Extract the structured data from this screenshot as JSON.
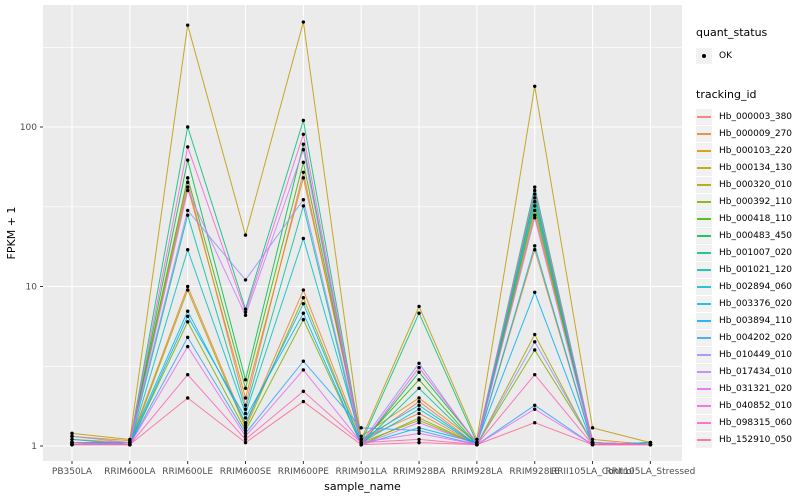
{
  "figure": {
    "xlabel": "sample_name",
    "ylabel": "FPKM + 1"
  },
  "legend": {
    "quant_status": {
      "title": "quant_status",
      "items": [
        {
          "label": "OK"
        }
      ]
    },
    "tracking_id": {
      "title": "tracking_id"
    }
  },
  "chart_data": {
    "type": "line",
    "x_type": "categorical",
    "title": "",
    "xlabel": "sample_name",
    "ylabel": "FPKM + 1",
    "y_scale": "log10",
    "y_ticks": [
      1,
      10,
      100
    ],
    "y_minor_ticks": [
      3.16,
      31.6,
      316
    ],
    "ylim": [
      0.95,
      520
    ],
    "grid": true,
    "legend_position": "right",
    "panel_bg": "#EBEBEB",
    "grid_color": "#FFFFFF",
    "point_color": "#000000",
    "quant_status_label": "OK",
    "categories": [
      "PB350LA",
      "RRIM600LA",
      "RRIM600LE",
      "RRIM600SE",
      "RRIM600PE",
      "RRIM901LA",
      "RRIM928BA",
      "RRIM928LA",
      "RRIM928LE",
      "RRII105LA_Control",
      "RRII105LA_Stressed"
    ],
    "series": [
      {
        "name": "Hb_000003_380",
        "color": "#F8766D",
        "values": [
          1.05,
          1.02,
          45,
          1.8,
          52,
          1.05,
          1.9,
          1.02,
          30,
          1.05,
          1.02
        ]
      },
      {
        "name": "Hb_000009_270",
        "color": "#EA8331",
        "values": [
          1.1,
          1.05,
          10,
          1.35,
          9.5,
          1.1,
          1.6,
          1.02,
          17,
          1.02,
          1.05
        ]
      },
      {
        "name": "Hb_000103_220",
        "color": "#D89000",
        "values": [
          1.15,
          1.08,
          42,
          2.0,
          48,
          1.15,
          2.0,
          1.05,
          28,
          1.1,
          1.02
        ]
      },
      {
        "name": "Hb_000134_130",
        "color": "#C09B00",
        "values": [
          1.2,
          1.1,
          435,
          21,
          455,
          1.1,
          7.5,
          1.1,
          180,
          1.3,
          1.05
        ]
      },
      {
        "name": "Hb_000320_010",
        "color": "#A3A500",
        "values": [
          1.02,
          1.02,
          9.5,
          1.3,
          8.5,
          1.05,
          1.45,
          1.02,
          5.0,
          1.02,
          1.02
        ]
      },
      {
        "name": "Hb_000392_110",
        "color": "#7CAE00",
        "values": [
          1.05,
          1.02,
          6.0,
          1.25,
          6.2,
          1.02,
          1.5,
          1.02,
          4.0,
          1.05,
          1.02
        ]
      },
      {
        "name": "Hb_000418_110",
        "color": "#39B600",
        "values": [
          1.02,
          1.05,
          48,
          2.3,
          60,
          1.05,
          2.6,
          1.02,
          32,
          1.02,
          1.05
        ]
      },
      {
        "name": "Hb_000483_450",
        "color": "#00BB4E",
        "values": [
          1.05,
          1.02,
          62,
          2.6,
          78,
          1.02,
          2.9,
          1.05,
          38,
          1.05,
          1.02
        ]
      },
      {
        "name": "Hb_001007_020",
        "color": "#00BF7D",
        "values": [
          1.05,
          1.05,
          100,
          7.2,
          110,
          1.05,
          6.8,
          1.05,
          42,
          1.05,
          1.02
        ]
      },
      {
        "name": "Hb_001021_120",
        "color": "#00C1A3",
        "values": [
          1.02,
          1.02,
          28,
          1.7,
          32,
          1.02,
          2.3,
          1.02,
          36,
          1.02,
          1.05
        ]
      },
      {
        "name": "Hb_002894_060",
        "color": "#00BFC4",
        "values": [
          1.1,
          1.02,
          17,
          1.6,
          20,
          1.1,
          1.8,
          1.02,
          34,
          1.05,
          1.02
        ]
      },
      {
        "name": "Hb_003376_020",
        "color": "#00BAE0",
        "values": [
          1.05,
          1.05,
          7.0,
          1.4,
          7.8,
          1.05,
          1.7,
          1.02,
          18,
          1.02,
          1.02
        ]
      },
      {
        "name": "Hb_003894_110",
        "color": "#00B0F6",
        "values": [
          1.02,
          1.02,
          6.5,
          1.5,
          6.8,
          1.02,
          1.3,
          1.05,
          9.2,
          1.02,
          1.02
        ]
      },
      {
        "name": "Hb_004202_020",
        "color": "#35A2FF",
        "values": [
          1.05,
          1.02,
          4.8,
          1.2,
          3.4,
          1.3,
          1.25,
          1.02,
          1.8,
          1.02,
          1.05
        ]
      },
      {
        "name": "Hb_010449_010",
        "color": "#9590FF",
        "values": [
          1.15,
          1.05,
          30,
          11,
          35,
          1.05,
          3.3,
          1.02,
          4.5,
          1.05,
          1.02
        ]
      },
      {
        "name": "Hb_017434_010",
        "color": "#C77CFF",
        "values": [
          1.02,
          1.02,
          40,
          6.6,
          72,
          1.02,
          1.4,
          1.02,
          27,
          1.02,
          1.02
        ]
      },
      {
        "name": "Hb_031321_020",
        "color": "#E76BF3",
        "values": [
          1.05,
          1.02,
          4.2,
          1.15,
          3.0,
          1.05,
          1.2,
          1.02,
          1.7,
          1.02,
          1.02
        ]
      },
      {
        "name": "Hb_040852_010",
        "color": "#FA62DB",
        "values": [
          1.02,
          1.05,
          75,
          6.9,
          90,
          1.02,
          3.1,
          1.05,
          40,
          1.05,
          1.02
        ]
      },
      {
        "name": "Hb_098315_060",
        "color": "#FF62BC",
        "values": [
          1.05,
          1.02,
          2.8,
          1.1,
          2.2,
          1.05,
          1.1,
          1.02,
          2.8,
          1.02,
          1.02
        ]
      },
      {
        "name": "Hb_152910_050",
        "color": "#FF6A98",
        "values": [
          1.02,
          1.02,
          2.0,
          1.05,
          1.9,
          1.02,
          1.05,
          1.02,
          1.4,
          1.02,
          1.02
        ]
      }
    ]
  }
}
